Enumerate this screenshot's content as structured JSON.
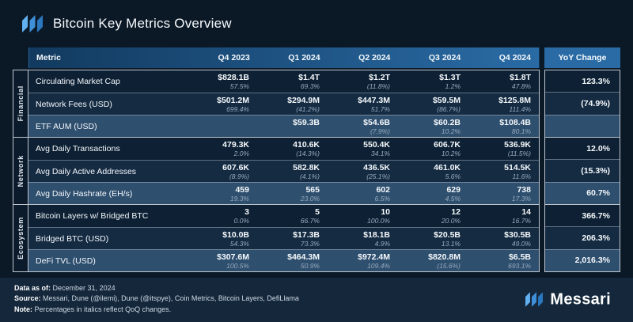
{
  "header": {
    "title": "Bitcoin Key Metrics Overview"
  },
  "chart_data": {
    "type": "table",
    "title": "Bitcoin Key Metrics Overview",
    "columns": [
      "Metric",
      "Q4 2023",
      "Q1 2024",
      "Q2 2024",
      "Q3 2024",
      "Q4 2024",
      "YoY Change"
    ],
    "qoq_note": "Italic percentages under each value are QoQ changes; values in parentheses are negative",
    "groups": [
      {
        "label": "Financial",
        "rows": [
          {
            "metric": "Circulating Market Cap",
            "values": [
              "$828.1B",
              "$1.4T",
              "$1.2T",
              "$1.3T",
              "$1.8T"
            ],
            "qoq": [
              "57.5%",
              "69.3%",
              "(11.8%)",
              "1.2%",
              "47.8%"
            ],
            "yoy": "123.3%"
          },
          {
            "metric": "Network Fees (USD)",
            "values": [
              "$501.2M",
              "$294.9M",
              "$447.3M",
              "$59.5M",
              "$125.8M"
            ],
            "qoq": [
              "699.4%",
              "(41.2%)",
              "51.7%",
              "(86.7%)",
              "111.4%"
            ],
            "yoy": "(74.9%)"
          },
          {
            "metric": "ETF AUM (USD)",
            "values": [
              "",
              "$59.3B",
              "$54.6B",
              "$60.2B",
              "$108.4B"
            ],
            "qoq": [
              "",
              "",
              "(7.9%)",
              "10.2%",
              "80.1%"
            ],
            "yoy": ""
          }
        ]
      },
      {
        "label": "Network",
        "rows": [
          {
            "metric": "Avg Daily Transactions",
            "values": [
              "479.3K",
              "410.6K",
              "550.4K",
              "606.7K",
              "536.9K"
            ],
            "qoq": [
              "2.0%",
              "(14.3%)",
              "34.1%",
              "10.2%",
              "(11.5%)"
            ],
            "yoy": "12.0%"
          },
          {
            "metric": "Avg Daily Active Addresses",
            "values": [
              "607.6K",
              "582.8K",
              "436.5K",
              "461.0K",
              "514.5K"
            ],
            "qoq": [
              "(8.9%)",
              "(4.1%)",
              "(25.1%)",
              "5.6%",
              "11.6%"
            ],
            "yoy": "(15.3%)"
          },
          {
            "metric": "Avg Daily Hashrate (EH/s)",
            "values": [
              "459",
              "565",
              "602",
              "629",
              "738"
            ],
            "qoq": [
              "19.3%",
              "23.0%",
              "6.5%",
              "4.5%",
              "17.3%"
            ],
            "yoy": "60.7%"
          }
        ]
      },
      {
        "label": "Ecosystem",
        "rows": [
          {
            "metric": "Bitcoin Layers w/ Bridged BTC",
            "values": [
              "3",
              "5",
              "10",
              "12",
              "14"
            ],
            "qoq": [
              "0.0%",
              "66.7%",
              "100.0%",
              "20.0%",
              "16.7%"
            ],
            "yoy": "366.7%"
          },
          {
            "metric": "Bridged BTC (USD)",
            "values": [
              "$10.0B",
              "$17.3B",
              "$18.1B",
              "$20.5B",
              "$30.5B"
            ],
            "qoq": [
              "54.3%",
              "73.3%",
              "4.9%",
              "13.1%",
              "49.0%"
            ],
            "yoy": "206.3%"
          },
          {
            "metric": "DeFi TVL (USD)",
            "values": [
              "$307.6M",
              "$464.3M",
              "$972.4M",
              "$820.8M",
              "$6.5B"
            ],
            "qoq": [
              "100.5%",
              "50.9%",
              "109.4%",
              "(15.6%)",
              "693.1%"
            ],
            "yoy": "2,016.3%"
          }
        ]
      }
    ]
  },
  "footer": {
    "data_as_of_label": "Data as of:",
    "data_as_of": "December 31, 2024",
    "source_label": "Source:",
    "source": "Messari, Dune (@ilemi), Dune (@itspye), Coin Metrics, Bitcoin Layers, DefiLlama",
    "note_label": "Note:",
    "note": "Percentages in italics reflect QoQ changes.",
    "wordmark": "Messari"
  },
  "colors": {
    "background": "#0b1826",
    "header_blue_dark": "#123a5f",
    "header_blue": "#2a6ba5",
    "row_dark": "#0e2134",
    "row_mid": "#152b42",
    "row_light": "#2f4f6e",
    "footer_background": "#14273b",
    "qoq_text": "#96abbf",
    "logo_blue_1": "#62b1f0",
    "logo_blue_2": "#3f90d8",
    "logo_blue_3": "#2a77bd"
  }
}
